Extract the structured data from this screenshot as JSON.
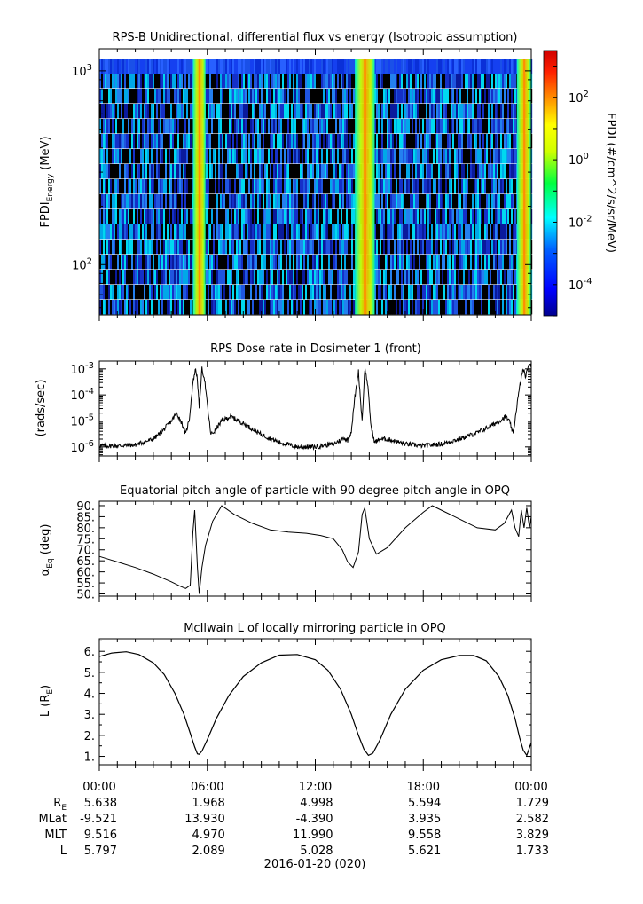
{
  "chart_data": [
    {
      "type": "heatmap",
      "title": "RPS-B  Unidirectional, differential flux vs energy (Isotropic assumption)",
      "ylabel_main": "FPDI",
      "ylabel_sub": "Energy",
      "ylabel_unit": " (MeV)",
      "yscale": "log",
      "ylim": [
        55,
        1300
      ],
      "yticks": [
        {
          "v": 100,
          "base": "10",
          "exp": "2"
        },
        {
          "v": 1000,
          "base": "10",
          "exp": "3"
        }
      ],
      "bright_bands_hours": [
        [
          5.2,
          5.9
        ],
        [
          14.2,
          15.3
        ],
        [
          23.2,
          24.0
        ]
      ],
      "colorbar": {
        "label": "FPDI (#/cm^2/s/sr/MeV)",
        "range_log10": [
          -5,
          3.5
        ],
        "ticks": [
          {
            "v": 2,
            "base": "10",
            "exp": "2"
          },
          {
            "v": 0,
            "base": "10",
            "exp": "0"
          },
          {
            "v": -2,
            "base": "10",
            "exp": "-2"
          },
          {
            "v": -4,
            "base": "10",
            "exp": "-4"
          }
        ]
      }
    },
    {
      "type": "line",
      "title": "RPS  Dose rate in Dosimeter 1 (front)",
      "ylabel": "(rads/sec)",
      "yscale": "log",
      "ylim": [
        4.5e-07,
        0.002
      ],
      "yticks": [
        {
          "v": 0.001,
          "base": "10",
          "exp": "-3"
        },
        {
          "v": 0.0001,
          "base": "10",
          "exp": "-4"
        },
        {
          "v": 1e-05,
          "base": "10",
          "exp": "-5"
        },
        {
          "v": 1e-06,
          "base": "10",
          "exp": "-6"
        }
      ],
      "x_hours": [
        0,
        1,
        2,
        3,
        3.5,
        4,
        4.3,
        4.6,
        4.8,
        5.0,
        5.2,
        5.35,
        5.45,
        5.55,
        5.7,
        5.85,
        6.05,
        6.2,
        6.4,
        6.8,
        7.3,
        8,
        9,
        10,
        11,
        12,
        13,
        13.4,
        13.6,
        13.8,
        14.0,
        14.2,
        14.4,
        14.6,
        14.75,
        14.9,
        15.1,
        15.3,
        15.6,
        16,
        17,
        18,
        19,
        20,
        21,
        22,
        22.6,
        22.8,
        23.0,
        23.2,
        23.4,
        23.55,
        23.7,
        23.85,
        24
      ],
      "values": [
        1.1e-06,
        1.1e-06,
        1.2e-06,
        2e-06,
        4e-06,
        1e-05,
        2e-05,
        8e-06,
        3e-06,
        1.2e-05,
        0.0003,
        0.001,
        0.0004,
        3e-05,
        0.001,
        0.0004,
        2e-05,
        3e-06,
        4e-06,
        1e-05,
        1.5e-05,
        8e-06,
        3e-06,
        1.5e-06,
        1e-06,
        1e-06,
        1.3e-06,
        1.8e-06,
        2.2e-06,
        1.8e-06,
        4e-06,
        8e-05,
        0.0008,
        1e-05,
        0.001,
        0.0003,
        6e-06,
        1.5e-06,
        2e-06,
        2e-06,
        1.3e-06,
        1.1e-06,
        1.3e-06,
        2e-06,
        3.5e-06,
        8e-06,
        1.5e-05,
        9e-06,
        3e-06,
        4e-05,
        0.0003,
        0.001,
        0.0005,
        0.0015,
        0.0012
      ]
    },
    {
      "type": "line",
      "title": "Equatorial pitch angle of particle with 90 degree pitch angle in OPQ",
      "ylabel_main": "α",
      "ylabel_sub": "Eq",
      "ylabel_unit": " (deg)",
      "ylim": [
        49,
        92
      ],
      "yticks": [
        50,
        55,
        60,
        65,
        70,
        75,
        80,
        85,
        90
      ],
      "x_hours": [
        0,
        1,
        2,
        3,
        4,
        4.5,
        4.8,
        5.05,
        5.2,
        5.3,
        5.45,
        5.55,
        5.7,
        5.9,
        6.3,
        6.8,
        7.5,
        8.5,
        9.5,
        10.5,
        11.5,
        12.3,
        13,
        13.5,
        13.8,
        14.1,
        14.4,
        14.6,
        14.75,
        15.0,
        15.4,
        16,
        17,
        18,
        18.5,
        19,
        20,
        21,
        22,
        22.5,
        22.9,
        23.1,
        23.3,
        23.45,
        23.6,
        23.75,
        23.9,
        24
      ],
      "values": [
        67,
        64.5,
        62,
        59,
        55.5,
        53.5,
        52.5,
        54,
        78,
        88,
        62,
        50,
        62,
        72,
        83,
        90,
        86,
        82,
        79,
        78,
        77.5,
        76.5,
        75,
        70,
        64.5,
        62,
        69,
        86,
        89,
        75,
        68,
        71,
        80,
        87,
        90,
        88,
        84,
        80,
        79,
        82,
        88,
        80,
        76,
        88,
        80,
        89,
        80,
        85
      ]
    },
    {
      "type": "line",
      "title": "McIlwain L of locally mirroring particle in OPQ",
      "ylabel_main": "L (R",
      "ylabel_sub": "E",
      "ylabel_unit": ")",
      "ylim": [
        0.6,
        6.6
      ],
      "yticks": [
        1,
        2,
        3,
        4,
        5,
        6
      ],
      "x_hours": [
        0,
        0.7,
        1.5,
        2.2,
        3,
        3.6,
        4.2,
        4.7,
        5.05,
        5.3,
        5.45,
        5.55,
        5.7,
        6.0,
        6.5,
        7.2,
        8,
        9,
        10,
        11,
        12,
        12.7,
        13.4,
        14.0,
        14.4,
        14.7,
        14.95,
        15.2,
        15.6,
        16.2,
        17,
        18,
        19,
        20,
        20.8,
        21.5,
        22.2,
        22.7,
        23.1,
        23.35,
        23.55,
        23.75,
        24
      ],
      "values": [
        5.75,
        5.92,
        5.98,
        5.85,
        5.45,
        4.9,
        4.0,
        3.0,
        2.1,
        1.45,
        1.12,
        1.1,
        1.25,
        1.8,
        2.8,
        3.9,
        4.8,
        5.45,
        5.82,
        5.85,
        5.6,
        5.1,
        4.2,
        3.0,
        2.0,
        1.35,
        1.05,
        1.15,
        1.8,
        3.0,
        4.2,
        5.1,
        5.6,
        5.8,
        5.8,
        5.55,
        4.8,
        3.9,
        2.8,
        1.9,
        1.3,
        1.05,
        1.65
      ]
    }
  ],
  "x_axis": {
    "tick_labels": [
      "00:00",
      "06:00",
      "12:00",
      "18:00",
      "00:00"
    ],
    "date_label": "2016-01-20 (020)"
  },
  "ephemeris": {
    "rows": [
      {
        "label_main": "R",
        "label_sub": "E",
        "values": [
          "5.638",
          "1.968",
          "4.998",
          "5.594",
          "1.729"
        ]
      },
      {
        "label_main": "MLat",
        "label_sub": "",
        "values": [
          "-9.521",
          "13.930",
          "-4.390",
          "3.935",
          "2.582"
        ]
      },
      {
        "label_main": "MLT",
        "label_sub": "",
        "values": [
          "9.516",
          "4.970",
          "11.990",
          "9.558",
          "3.829"
        ]
      },
      {
        "label_main": "L",
        "label_sub": "",
        "values": [
          "5.797",
          "2.089",
          "5.028",
          "5.621",
          "1.733"
        ]
      }
    ]
  }
}
